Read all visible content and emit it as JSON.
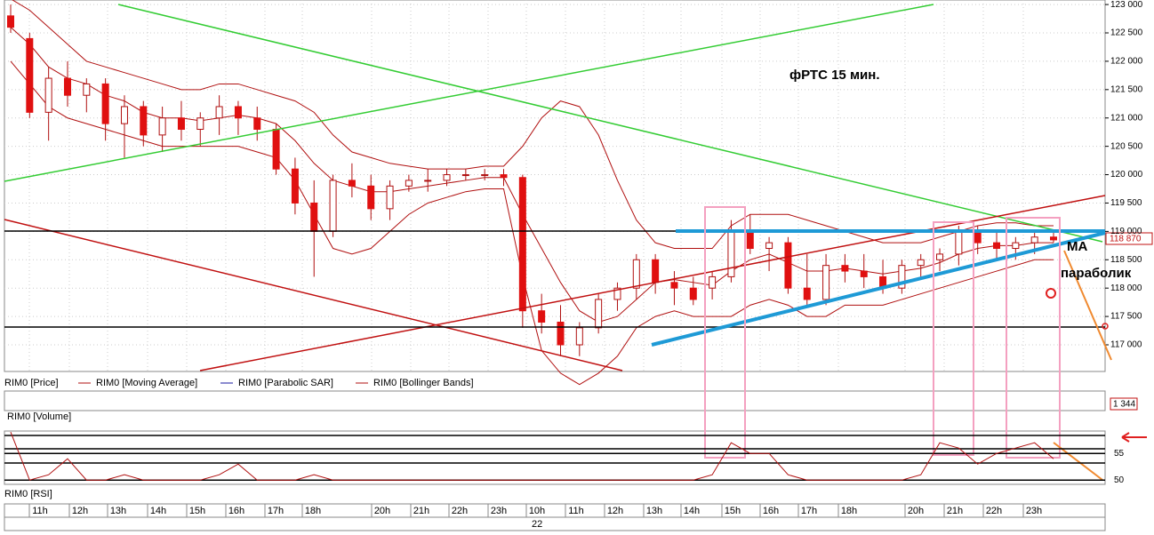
{
  "chart_data": {
    "type": "candlestick",
    "title": "фРТС   15 мин.",
    "annotations": [
      "МА",
      "параболик"
    ],
    "legend": [
      "RIM0 [Price]",
      "RIM0 [Moving Average]",
      "RIM0 [Parabolic SAR]",
      "RIM0 [Bollinger Bands]"
    ],
    "volume_label": "RIM0 [Volume]",
    "volume_value": "1 344",
    "rsi_label": "RIM0 [RSI]",
    "last_price": "118 870",
    "time_labels": [
      "11h",
      "12h",
      "13h",
      "14h",
      "15h",
      "16h",
      "17h",
      "18h",
      "20h",
      "21h",
      "22h",
      "23h",
      "10h",
      "11h",
      "12h",
      "13h",
      "14h",
      "15h",
      "16h",
      "17h",
      "18h",
      "20h",
      "21h",
      "22h",
      "23h"
    ],
    "date_label": "22",
    "ylim": [
      116530,
      123080
    ],
    "yticks": [
      {
        "value": 123000,
        "label": "123 000"
      },
      {
        "value": 122500,
        "label": "122 500"
      },
      {
        "value": 122000,
        "label": "122 000"
      },
      {
        "value": 121500,
        "label": "121 500"
      },
      {
        "value": 121000,
        "label": "121 000"
      },
      {
        "value": 120500,
        "label": "120 500"
      },
      {
        "value": 120000,
        "label": "120 000"
      },
      {
        "value": 119500,
        "label": "119 500"
      },
      {
        "value": 119000,
        "label": "119 000"
      },
      {
        "value": 118500,
        "label": "118 500"
      },
      {
        "value": 118000,
        "label": "118 000"
      },
      {
        "value": 117500,
        "label": "117 500"
      },
      {
        "value": 117000,
        "label": "117 000"
      }
    ],
    "up_color": "#ffffff",
    "down_color": "#e01010",
    "line_color": "#b01010",
    "candles": [
      [
        122800,
        123000,
        122500,
        122600
      ],
      [
        122400,
        122500,
        121000,
        121100
      ],
      [
        121100,
        121900,
        120600,
        121700
      ],
      [
        121700,
        122000,
        121200,
        121400
      ],
      [
        121400,
        121700,
        121100,
        121600
      ],
      [
        121600,
        121700,
        120600,
        120900
      ],
      [
        120900,
        121400,
        120300,
        121200
      ],
      [
        121200,
        121300,
        120500,
        120700
      ],
      [
        120700,
        121200,
        120400,
        121000
      ],
      [
        121000,
        121300,
        120600,
        120800
      ],
      [
        120800,
        121100,
        120500,
        121000
      ],
      [
        121000,
        121400,
        120700,
        121200
      ],
      [
        121200,
        121300,
        120700,
        121000
      ],
      [
        121000,
        121200,
        120600,
        120800
      ],
      [
        120800,
        120900,
        120000,
        120100
      ],
      [
        120100,
        120300,
        119300,
        119500
      ],
      [
        119500,
        119900,
        118200,
        119000
      ],
      [
        119000,
        120000,
        118900,
        119900
      ],
      [
        119900,
        120200,
        119600,
        119800
      ],
      [
        119800,
        120000,
        119200,
        119400
      ],
      [
        119400,
        119900,
        119200,
        119800
      ],
      [
        119800,
        120000,
        119700,
        119900
      ],
      [
        119900,
        120100,
        119700,
        119900
      ],
      [
        119900,
        120100,
        119800,
        120000
      ],
      [
        120000,
        120100,
        119900,
        120000
      ],
      [
        120000,
        120100,
        119900,
        120000
      ],
      [
        120000,
        120100,
        119800,
        119950
      ],
      [
        119950,
        120000,
        117300,
        117600
      ],
      [
        117600,
        117900,
        117200,
        117400
      ],
      [
        117400,
        117700,
        116800,
        117000
      ],
      [
        117000,
        117400,
        116800,
        117300
      ],
      [
        117300,
        117900,
        117200,
        117800
      ],
      [
        117800,
        118100,
        117600,
        118000
      ],
      [
        118000,
        118600,
        117800,
        118500
      ],
      [
        118500,
        118600,
        117900,
        118100
      ],
      [
        118100,
        118300,
        117700,
        118000
      ],
      [
        118000,
        118200,
        117700,
        117800
      ],
      [
        118000,
        118300,
        117800,
        118200
      ],
      [
        118200,
        119200,
        118100,
        119000
      ],
      [
        119000,
        119300,
        118600,
        118700
      ],
      [
        118700,
        118900,
        118300,
        118800
      ],
      [
        118800,
        118900,
        117900,
        118000
      ],
      [
        118000,
        118600,
        117700,
        117800
      ],
      [
        117800,
        118600,
        117700,
        118400
      ],
      [
        118400,
        118600,
        118100,
        118300
      ],
      [
        118300,
        118600,
        118000,
        118200
      ],
      [
        118200,
        118500,
        117900,
        118000
      ],
      [
        118000,
        118500,
        117900,
        118400
      ],
      [
        118400,
        118600,
        118200,
        118500
      ],
      [
        118500,
        118700,
        118300,
        118600
      ],
      [
        118600,
        119100,
        118400,
        119000
      ],
      [
        119000,
        119100,
        118600,
        118800
      ],
      [
        118800,
        119000,
        118500,
        118700
      ],
      [
        118700,
        118900,
        118500,
        118800
      ],
      [
        118800,
        119000,
        118600,
        118900
      ],
      [
        118900,
        119000,
        118800,
        118850
      ]
    ],
    "series": [
      {
        "name": "RIM0 [Moving Average]",
        "color": "#b01010",
        "values": [
          122600,
          122300,
          121900,
          121700,
          121600,
          121400,
          121300,
          121100,
          121000,
          121000,
          120950,
          121000,
          121050,
          121000,
          120900,
          120600,
          120200,
          119900,
          119800,
          119700,
          119700,
          119750,
          119800,
          119850,
          119900,
          119950,
          119950,
          119300,
          118700,
          118100,
          117600,
          117400,
          117500,
          117800,
          118100,
          118150,
          118100,
          118050,
          118300,
          118500,
          118600,
          118450,
          118300,
          118300,
          118350,
          118300,
          118250,
          118300,
          118350,
          118450,
          118600,
          118700,
          118750,
          118750,
          118800,
          118800
        ]
      },
      {
        "name": "RIM0 [Bollinger Bands]",
        "color": "#b01010",
        "values": [
          123100,
          122900,
          122600,
          122300,
          122000,
          121900,
          121800,
          121700,
          121600,
          121500,
          121500,
          121600,
          121600,
          121500,
          121400,
          121300,
          121100,
          120700,
          120400,
          120300,
          120200,
          120150,
          120100,
          120100,
          120100,
          120150,
          120150,
          120500,
          121000,
          121300,
          121200,
          120700,
          119900,
          119200,
          118800,
          118700,
          118700,
          118700,
          119100,
          119300,
          119300,
          119300,
          119200,
          119100,
          119000,
          118900,
          118800,
          118800,
          118800,
          118900,
          119000,
          119100,
          119150,
          119150,
          119100,
          119100
        ]
      },
      {
        "name": "RIM0 [Bollinger Bands]",
        "color": "#b01010",
        "values": [
          122000,
          121600,
          121200,
          121000,
          120900,
          120800,
          120700,
          120600,
          120500,
          120500,
          120500,
          120500,
          120500,
          120400,
          120300,
          119900,
          119300,
          118700,
          118600,
          118700,
          119000,
          119300,
          119500,
          119600,
          119700,
          119750,
          119750,
          118200,
          116900,
          116500,
          116300,
          116500,
          116800,
          117300,
          117500,
          117600,
          117500,
          117500,
          117500,
          117700,
          117800,
          117700,
          117500,
          117500,
          117700,
          117700,
          117700,
          117800,
          117900,
          118000,
          118100,
          118200,
          118300,
          118400,
          118500,
          118500
        ]
      }
    ],
    "rsi": {
      "ylim": [
        49.2,
        59.2
      ],
      "yticks": [
        55,
        50
      ],
      "color": "#b01010",
      "values": [
        59,
        50,
        51,
        54,
        50,
        50,
        51,
        50,
        50,
        50,
        50,
        51,
        53,
        50,
        50,
        50,
        51,
        50,
        50,
        50,
        50,
        50,
        50,
        50,
        50,
        50,
        50,
        50,
        50,
        50,
        50,
        50,
        50,
        50,
        50,
        50,
        50,
        51,
        57,
        55,
        55,
        51,
        50,
        50,
        50,
        50,
        50,
        50,
        51,
        57,
        56,
        53,
        55,
        56,
        57,
        54
      ]
    }
  }
}
